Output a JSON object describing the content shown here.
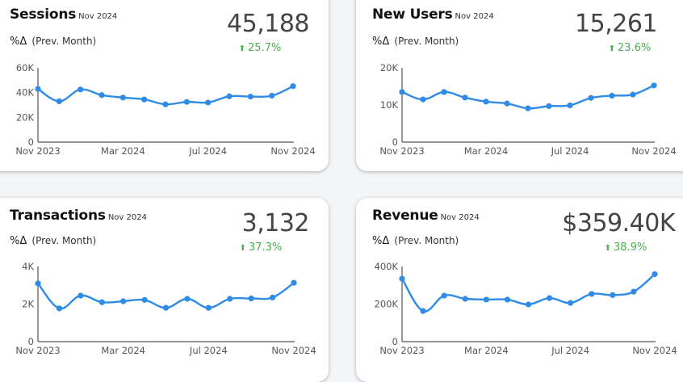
{
  "cards": [
    {
      "title": "Sessions",
      "period": "Nov 2024",
      "delta_label": "%Δ",
      "delta_sub": "(Prev. Month)",
      "value": "45,188",
      "change": "25.7%",
      "change_icon": "arrow-up-icon"
    },
    {
      "title": "New Users",
      "period": "Nov 2024",
      "delta_label": "%Δ",
      "delta_sub": "(Prev. Month)",
      "value": "15,261",
      "change": "23.6%",
      "change_icon": "arrow-up-icon"
    },
    {
      "title": "Transactions",
      "period": "Nov 2024",
      "delta_label": "%Δ",
      "delta_sub": "(Prev. Month)",
      "value": "3,132",
      "change": "37.3%",
      "change_icon": "arrow-up-icon"
    },
    {
      "title": "Revenue",
      "period": "Nov 2024",
      "delta_label": "%Δ",
      "delta_sub": "(Prev. Month)",
      "value": "$359.40K",
      "change": "38.9%",
      "change_icon": "arrow-up-icon"
    }
  ],
  "colors": {
    "line": "#2e8be6",
    "positive": "#4caf50",
    "axis": "#555555"
  },
  "chart_data": [
    {
      "type": "line",
      "title": "Sessions",
      "x": [
        "Nov 2023",
        "Dec 2023",
        "Jan 2024",
        "Feb 2024",
        "Mar 2024",
        "Apr 2024",
        "May 2024",
        "Jun 2024",
        "Jul 2024",
        "Aug 2024",
        "Sep 2024",
        "Oct 2024",
        "Nov 2024"
      ],
      "xticks": [
        "Nov 2023",
        "Mar 2024",
        "Jul 2024",
        "Nov 2024"
      ],
      "yticks": [
        "0",
        "20K",
        "40K",
        "60K"
      ],
      "ytick_values": [
        0,
        20000,
        40000,
        60000
      ],
      "ylim": [
        0,
        60000
      ],
      "values": [
        43000,
        33000,
        42500,
        38000,
        36000,
        34500,
        30500,
        32500,
        32000,
        37000,
        36800,
        37500,
        45188
      ],
      "grid": false
    },
    {
      "type": "line",
      "title": "New Users",
      "x": [
        "Nov 2023",
        "Dec 2023",
        "Jan 2024",
        "Feb 2024",
        "Mar 2024",
        "Apr 2024",
        "May 2024",
        "Jun 2024",
        "Jul 2024",
        "Aug 2024",
        "Sep 2024",
        "Oct 2024",
        "Nov 2024"
      ],
      "xticks": [
        "Nov 2023",
        "Mar 2024",
        "Jul 2024",
        "Nov 2024"
      ],
      "yticks": [
        "0",
        "10K",
        "20K"
      ],
      "ytick_values": [
        0,
        10000,
        20000
      ],
      "ylim": [
        0,
        20000
      ],
      "values": [
        13500,
        11500,
        13500,
        12000,
        10900,
        10400,
        9100,
        9700,
        9900,
        11900,
        12500,
        12800,
        15261
      ],
      "grid": false
    },
    {
      "type": "line",
      "title": "Transactions",
      "x": [
        "Nov 2023",
        "Dec 2023",
        "Jan 2024",
        "Feb 2024",
        "Mar 2024",
        "Apr 2024",
        "May 2024",
        "Jun 2024",
        "Jul 2024",
        "Aug 2024",
        "Sep 2024",
        "Oct 2024",
        "Nov 2024"
      ],
      "xticks": [
        "Nov 2023",
        "Mar 2024",
        "Jul 2024",
        "Nov 2024"
      ],
      "yticks": [
        "0",
        "2K",
        "4K"
      ],
      "ytick_values": [
        0,
        2000,
        4000
      ],
      "ylim": [
        0,
        4000
      ],
      "values": [
        3100,
        1770,
        2450,
        2100,
        2150,
        2220,
        1800,
        2280,
        1800,
        2280,
        2300,
        2350,
        3132
      ],
      "grid": false
    },
    {
      "type": "line",
      "title": "Revenue",
      "x": [
        "Nov 2023",
        "Dec 2023",
        "Jan 2024",
        "Feb 2024",
        "Mar 2024",
        "Apr 2024",
        "May 2024",
        "Jun 2024",
        "Jul 2024",
        "Aug 2024",
        "Sep 2024",
        "Oct 2024",
        "Nov 2024"
      ],
      "xticks": [
        "Nov 2023",
        "Mar 2024",
        "Jul 2024",
        "Nov 2024"
      ],
      "yticks": [
        "0",
        "200K",
        "400K"
      ],
      "ytick_values": [
        0,
        200000,
        400000
      ],
      "ylim": [
        0,
        400000
      ],
      "values": [
        335000,
        163000,
        245000,
        228000,
        224000,
        224000,
        198000,
        232000,
        206000,
        254000,
        248000,
        266000,
        359400
      ],
      "grid": false
    }
  ]
}
